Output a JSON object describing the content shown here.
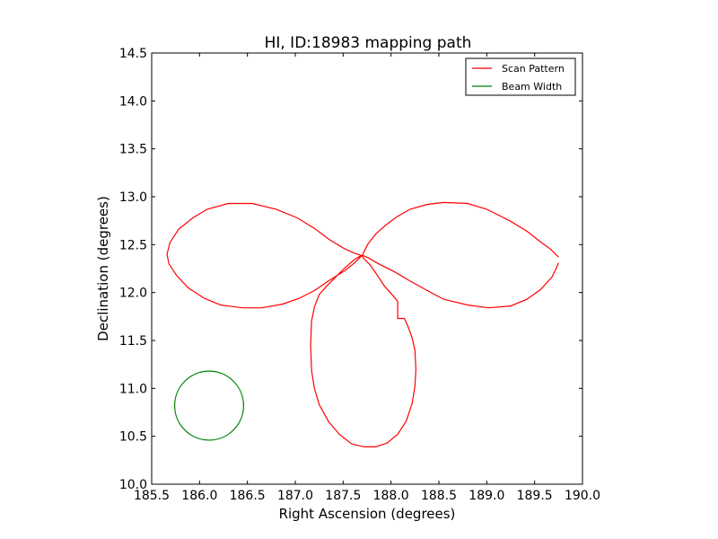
{
  "chart_data": {
    "type": "line",
    "title": "HI, ID:18983 mapping path",
    "xlabel": "Right Ascension (degrees)",
    "ylabel": "Declination (degrees)",
    "xlim": [
      185.5,
      190.0
    ],
    "ylim": [
      10.0,
      14.5
    ],
    "x_ticks": [
      185.5,
      186.0,
      186.5,
      187.0,
      187.5,
      188.0,
      188.5,
      189.0,
      189.5,
      190.0
    ],
    "y_ticks": [
      10.0,
      10.5,
      11.0,
      11.5,
      12.0,
      12.5,
      13.0,
      13.5,
      14.0,
      14.5
    ],
    "grid": false,
    "legend_position": "top-right",
    "series": [
      {
        "name": "Scan Pattern",
        "color": "#ff0000",
        "x": [
          189.75,
          189.73,
          189.68,
          189.56,
          189.42,
          189.25,
          189.02,
          188.8,
          188.55,
          188.38,
          188.2,
          188.03,
          187.87,
          187.77,
          187.72,
          187.7,
          187.68,
          187.62,
          187.52,
          187.36,
          187.2,
          187.04,
          186.87,
          186.65,
          186.45,
          186.22,
          186.05,
          185.88,
          185.76,
          185.68,
          185.66,
          185.69,
          185.78,
          185.93,
          186.08,
          186.3,
          186.55,
          186.8,
          187.02,
          187.2,
          187.36,
          187.51,
          187.62,
          187.68,
          187.7,
          187.72,
          187.78,
          187.85,
          187.93,
          188.01,
          188.07,
          188.07,
          188.14,
          188.18,
          188.22,
          188.25,
          188.26,
          188.25,
          188.22,
          188.16,
          188.07,
          187.96,
          187.84,
          187.72,
          187.59,
          187.46,
          187.35,
          187.25,
          187.2,
          187.17,
          187.16,
          187.17,
          187.2,
          187.25,
          187.33,
          187.42,
          187.51,
          187.59,
          187.64,
          187.68,
          187.7,
          187.72,
          187.76,
          187.84,
          187.94,
          188.06,
          188.2,
          188.38,
          188.55,
          188.8,
          189.0,
          189.24,
          189.42,
          189.56,
          189.67,
          189.73,
          189.75
        ],
        "y": [
          12.31,
          12.26,
          12.16,
          12.03,
          11.93,
          11.86,
          11.84,
          11.87,
          11.93,
          12.02,
          12.12,
          12.22,
          12.3,
          12.36,
          12.38,
          12.39,
          12.37,
          12.31,
          12.23,
          12.13,
          12.02,
          11.94,
          11.88,
          11.84,
          11.84,
          11.87,
          11.94,
          12.05,
          12.18,
          12.3,
          12.4,
          12.52,
          12.66,
          12.78,
          12.87,
          12.93,
          12.93,
          12.87,
          12.78,
          12.67,
          12.55,
          12.46,
          12.41,
          12.39,
          12.38,
          12.35,
          12.29,
          12.19,
          12.07,
          11.98,
          11.91,
          11.73,
          11.73,
          11.64,
          11.53,
          11.4,
          11.2,
          11.02,
          10.84,
          10.66,
          10.52,
          10.43,
          10.39,
          10.39,
          10.42,
          10.52,
          10.65,
          10.83,
          11.0,
          11.19,
          11.45,
          11.7,
          11.85,
          11.98,
          12.07,
          12.16,
          12.25,
          12.32,
          12.36,
          12.38,
          12.39,
          12.43,
          12.51,
          12.61,
          12.7,
          12.79,
          12.87,
          12.92,
          12.94,
          12.93,
          12.87,
          12.75,
          12.64,
          12.53,
          12.45,
          12.39,
          12.37
        ]
      },
      {
        "name": "Beam Width",
        "color": "#008000",
        "center": [
          186.1,
          10.82
        ],
        "radius": 0.36
      }
    ]
  }
}
